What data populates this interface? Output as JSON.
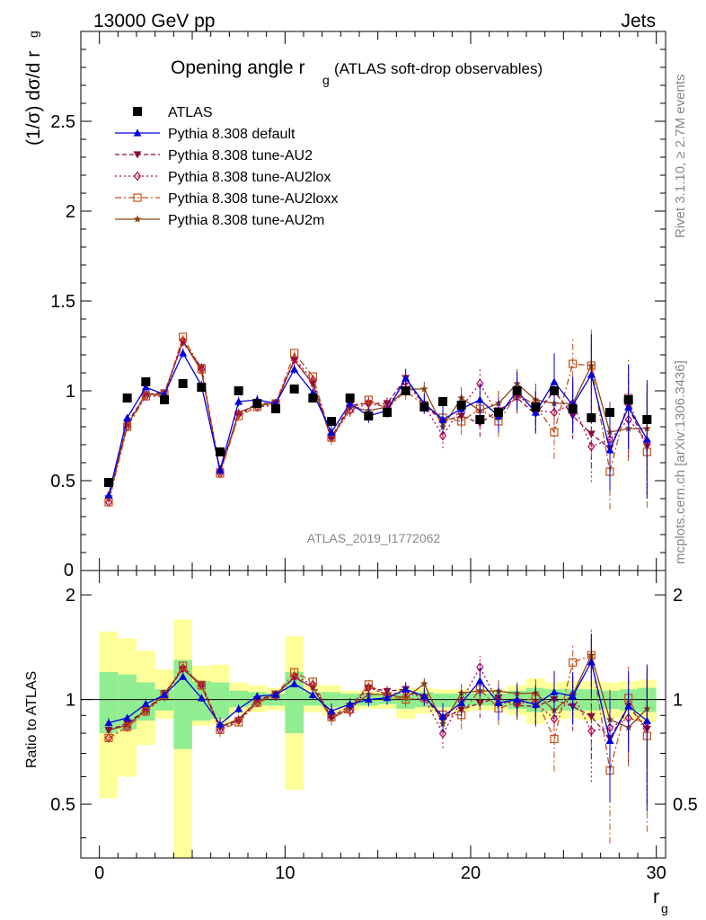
{
  "header": {
    "energy": "13000 GeV pp",
    "process": "Jets",
    "title_main": "Opening angle r",
    "title_sub": "g",
    "title_paren": "(ATLAS soft-drop observables)",
    "ylabel_main": "(1/σ) dσ/d r",
    "ylabel_sub": "g",
    "ratio_ylabel": "Ratio to ATLAS",
    "xlabel_main": "r",
    "xlabel_sub": "g",
    "analysis_id": "ATLAS_2019_I1772062",
    "side_rivet": "Rivet 3.1.10, ≥ 2.7M events",
    "side_mcplots": "mcplots.cern.ch [arXiv:1306.3436]"
  },
  "colors": {
    "data": "#000000",
    "default": "#0000dd",
    "au2": "#8b0a3a",
    "au2lox": "#b00050",
    "au2loxx": "#c0501a",
    "au2m": "#8b4513",
    "band_yellow": "#ffff99",
    "band_green": "#90ee90"
  },
  "chart_data": {
    "type": "scatter",
    "x": [
      0.5,
      1.5,
      2.5,
      3.5,
      4.5,
      5.5,
      6.5,
      7.5,
      8.5,
      9.5,
      10.5,
      11.5,
      12.5,
      13.5,
      14.5,
      15.5,
      16.5,
      17.5,
      18.5,
      19.5,
      20.5,
      21.5,
      22.5,
      23.5,
      24.5,
      25.5,
      26.5,
      27.5,
      28.5,
      29.5
    ],
    "xlabel": "r_g",
    "ylabel": "(1/σ) dσ/d r_g",
    "xlim": [
      -1,
      30.5
    ],
    "ylim": [
      0,
      3.0
    ],
    "ratio_ylim": [
      0.35,
      2.35
    ],
    "yticks": [
      0.5,
      1,
      1.5,
      2,
      2.5
    ],
    "ratio_yticks": [
      0.5,
      1,
      2
    ],
    "xticks": [
      0,
      10,
      20,
      30
    ],
    "legend_position": "top-left",
    "series": [
      {
        "name": "ATLAS",
        "key": "data",
        "marker": "square",
        "values": [
          0.49,
          0.96,
          1.05,
          0.95,
          1.04,
          1.02,
          0.66,
          1.0,
          0.93,
          0.9,
          1.01,
          0.96,
          0.83,
          0.96,
          0.86,
          0.88,
          1.0,
          0.91,
          0.94,
          0.92,
          0.84,
          0.88,
          1.0,
          0.91,
          1.0,
          0.9,
          0.85,
          0.88,
          0.95,
          0.84
        ]
      },
      {
        "name": "Pythia 8.308 default",
        "key": "default",
        "marker": "triangle",
        "dash": "",
        "values": [
          0.42,
          0.85,
          1.02,
          0.98,
          1.21,
          1.03,
          0.56,
          0.94,
          0.95,
          0.93,
          1.12,
          0.99,
          0.77,
          0.93,
          0.86,
          0.89,
          1.07,
          0.93,
          0.84,
          0.9,
          0.95,
          0.86,
          1.0,
          0.88,
          1.05,
          0.92,
          1.09,
          0.67,
          0.91,
          0.73
        ]
      },
      {
        "name": "Pythia 8.308 tune-AU2",
        "key": "au2",
        "marker": "triangle-down",
        "dash": "5,3",
        "values": [
          0.4,
          0.82,
          0.98,
          0.99,
          1.27,
          1.13,
          0.55,
          0.87,
          0.93,
          0.93,
          1.17,
          1.04,
          0.74,
          0.92,
          0.93,
          0.93,
          1.07,
          0.92,
          0.83,
          0.86,
          0.82,
          0.89,
          0.96,
          0.87,
          1.0,
          0.86,
          0.76,
          0.68,
          0.91,
          0.69
        ]
      },
      {
        "name": "Pythia 8.308 tune-AU2lox",
        "key": "au2lox",
        "marker": "diamond",
        "dash": "2,3",
        "values": [
          0.38,
          0.8,
          0.97,
          0.97,
          1.28,
          1.12,
          0.54,
          0.87,
          0.91,
          0.92,
          1.18,
          1.06,
          0.74,
          0.89,
          0.93,
          0.91,
          1.05,
          0.92,
          0.75,
          0.91,
          1.04,
          0.86,
          0.98,
          0.89,
          0.88,
          0.93,
          0.69,
          0.73,
          0.84,
          0.72
        ]
      },
      {
        "name": "Pythia 8.308 tune-AU2loxx",
        "key": "au2loxx",
        "marker": "square-open",
        "dash": "7,3,2,3",
        "values": [
          0.38,
          0.8,
          0.97,
          0.98,
          1.3,
          1.12,
          0.54,
          0.86,
          0.91,
          0.93,
          1.21,
          1.08,
          0.74,
          0.9,
          0.95,
          0.9,
          1.0,
          0.92,
          0.85,
          0.83,
          0.9,
          0.83,
          0.98,
          0.92,
          0.77,
          1.15,
          1.14,
          0.55,
          0.96,
          0.66
        ]
      },
      {
        "name": "Pythia 8.308 tune-AU2m",
        "key": "au2m",
        "marker": "star",
        "dash": "",
        "values": [
          0.4,
          0.81,
          0.98,
          0.98,
          1.28,
          1.11,
          0.55,
          0.88,
          0.92,
          0.93,
          1.17,
          1.04,
          0.73,
          0.91,
          0.89,
          0.91,
          1.01,
          1.01,
          0.8,
          0.96,
          0.89,
          0.93,
          1.04,
          0.95,
          0.93,
          0.93,
          1.14,
          0.77,
          0.79,
          0.79
        ]
      }
    ],
    "mc_errors": [
      0.01,
      0.01,
      0.01,
      0.01,
      0.02,
      0.02,
      0.02,
      0.02,
      0.02,
      0.02,
      0.02,
      0.02,
      0.03,
      0.03,
      0.03,
      0.03,
      0.04,
      0.04,
      0.06,
      0.06,
      0.07,
      0.07,
      0.08,
      0.09,
      0.12,
      0.12,
      0.17,
      0.17,
      0.18,
      0.25
    ],
    "band_yellow": [
      [
        0.52,
        1.57
      ],
      [
        0.6,
        1.5
      ],
      [
        0.74,
        1.38
      ],
      [
        0.88,
        1.22
      ],
      [
        0.33,
        1.7
      ],
      [
        0.84,
        1.25
      ],
      [
        0.85,
        1.26
      ],
      [
        0.91,
        1.12
      ],
      [
        0.92,
        1.1
      ],
      [
        0.93,
        1.08
      ],
      [
        0.55,
        1.52
      ],
      [
        0.92,
        1.1
      ],
      [
        0.9,
        1.1
      ],
      [
        0.93,
        1.06
      ],
      [
        0.94,
        1.06
      ],
      [
        0.94,
        1.05
      ],
      [
        0.88,
        1.08
      ],
      [
        0.91,
        1.08
      ],
      [
        0.92,
        1.07
      ],
      [
        0.92,
        1.07
      ],
      [
        0.93,
        1.07
      ],
      [
        0.93,
        1.07
      ],
      [
        0.9,
        1.1
      ],
      [
        0.85,
        1.15
      ],
      [
        0.88,
        1.12
      ],
      [
        0.88,
        1.13
      ],
      [
        0.87,
        1.13
      ],
      [
        0.88,
        1.12
      ],
      [
        0.87,
        1.13
      ],
      [
        0.86,
        1.14
      ]
    ],
    "band_green": [
      [
        0.8,
        1.2
      ],
      [
        0.82,
        1.18
      ],
      [
        0.87,
        1.12
      ],
      [
        0.93,
        1.07
      ],
      [
        0.72,
        1.3
      ],
      [
        0.87,
        1.13
      ],
      [
        0.88,
        1.12
      ],
      [
        0.95,
        1.06
      ],
      [
        0.96,
        1.05
      ],
      [
        0.96,
        1.04
      ],
      [
        0.8,
        1.2
      ],
      [
        0.96,
        1.05
      ],
      [
        0.95,
        1.05
      ],
      [
        0.96,
        1.04
      ],
      [
        0.96,
        1.04
      ],
      [
        0.97,
        1.03
      ],
      [
        0.94,
        1.04
      ],
      [
        0.95,
        1.05
      ],
      [
        0.95,
        1.04
      ],
      [
        0.95,
        1.04
      ],
      [
        0.96,
        1.04
      ],
      [
        0.96,
        1.04
      ],
      [
        0.94,
        1.06
      ],
      [
        0.92,
        1.08
      ],
      [
        0.93,
        1.07
      ],
      [
        0.93,
        1.07
      ],
      [
        0.93,
        1.07
      ],
      [
        0.94,
        1.06
      ],
      [
        0.93,
        1.07
      ],
      [
        0.92,
        1.08
      ]
    ]
  }
}
